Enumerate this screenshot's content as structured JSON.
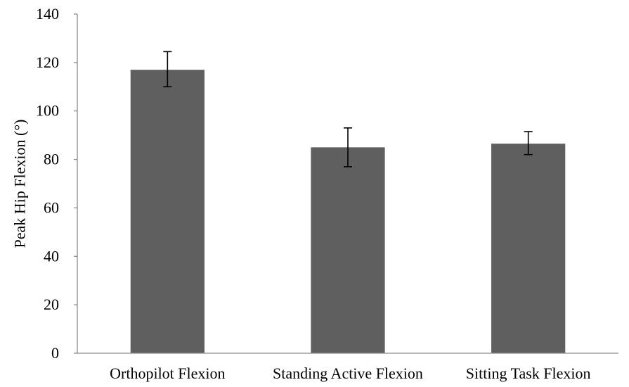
{
  "chart_data": {
    "type": "bar",
    "title": "",
    "xlabel": "",
    "ylabel": "Peak Hip Flexion (°)",
    "categories": [
      "Orthopilot Flexion",
      "Standing Active Flexion",
      "Sitting Task Flexion"
    ],
    "values": [
      117,
      85,
      86.5
    ],
    "error_bars": [
      {
        "low": 110,
        "high": 124.5
      },
      {
        "low": 77,
        "high": 93
      },
      {
        "low": 82,
        "high": 91.5
      }
    ],
    "ylim": [
      0,
      140
    ],
    "yticks": [
      0,
      20,
      40,
      60,
      80,
      100,
      120,
      140
    ],
    "grid": false,
    "legend": "none",
    "colors": {
      "bar": "#5f5f5f",
      "axis": "#8c8c8c",
      "error_bar": "#000000"
    }
  }
}
